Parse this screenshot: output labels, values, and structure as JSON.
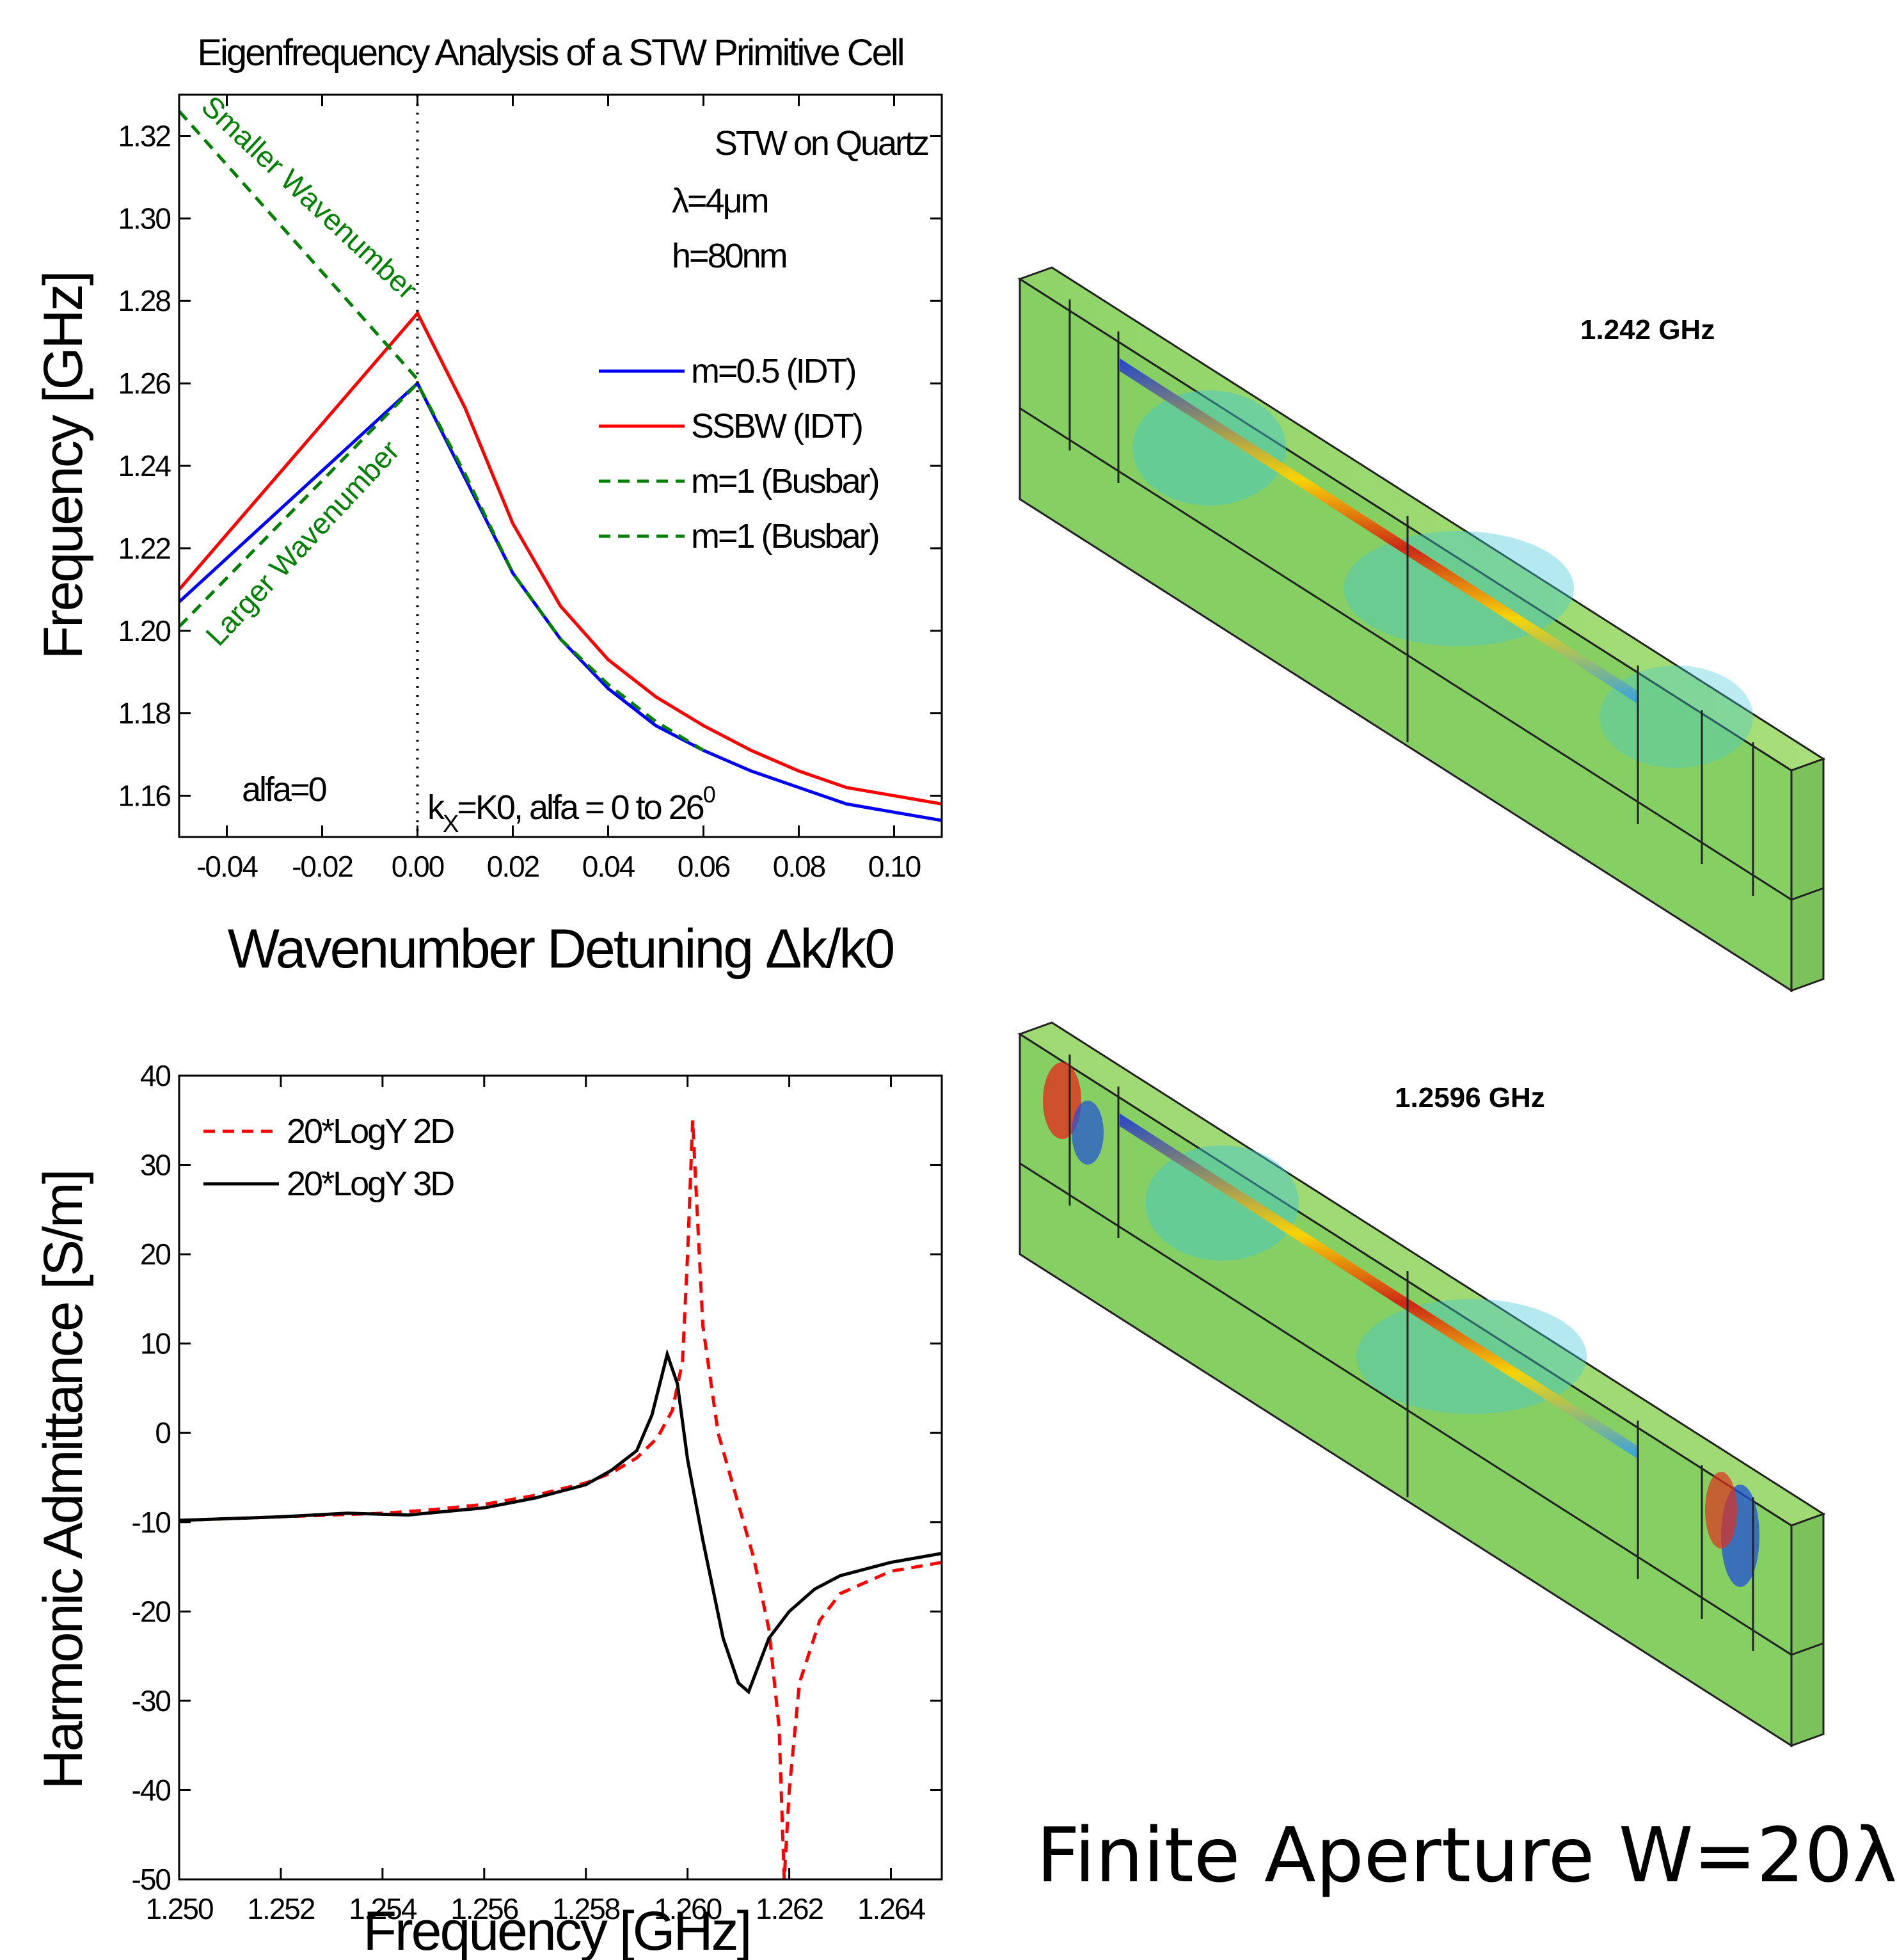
{
  "chart_data": [
    {
      "type": "line",
      "title": "Eigenfrequency Analysis of a STW Primitive Cell",
      "xlabel": "Wavenumber Detuning Δk/k0",
      "ylabel": "Frequency [GHz]",
      "xlim": [
        -0.05,
        0.11
      ],
      "ylim": [
        1.15,
        1.33
      ],
      "xticks": [
        "-0.04",
        "-0.02",
        "0.00",
        "0.02",
        "0.04",
        "0.06",
        "0.08",
        "0.10"
      ],
      "yticks": [
        "1.16",
        "1.18",
        "1.20",
        "1.22",
        "1.24",
        "1.26",
        "1.28",
        "1.30",
        "1.32"
      ],
      "legend_position": "center-right",
      "series": [
        {
          "name": "m=0.5 (IDT)",
          "color": "#0000ff",
          "dash": "solid",
          "x": [
            -0.05,
            0.0,
            0.01,
            0.02,
            0.03,
            0.04,
            0.05,
            0.06,
            0.07,
            0.08,
            0.09,
            0.11
          ],
          "y": [
            1.207,
            1.26,
            1.237,
            1.214,
            1.198,
            1.186,
            1.177,
            1.171,
            1.166,
            1.162,
            1.158,
            1.154
          ]
        },
        {
          "name": "SSBW (IDT)",
          "color": "#ff0000",
          "dash": "solid",
          "x": [
            -0.05,
            0.0,
            0.01,
            0.02,
            0.03,
            0.04,
            0.05,
            0.06,
            0.07,
            0.08,
            0.09,
            0.11
          ],
          "y": [
            1.21,
            1.277,
            1.254,
            1.226,
            1.206,
            1.193,
            1.184,
            1.177,
            1.171,
            1.166,
            1.162,
            1.158
          ]
        },
        {
          "name": "m=1 (Busbar)",
          "color": "#008000",
          "dash": "dashed",
          "x": [
            -0.05,
            0.0,
            0.01,
            0.02,
            0.03,
            0.04,
            0.05,
            0.06
          ],
          "y": [
            1.201,
            1.26,
            1.238,
            1.214,
            1.198,
            1.187,
            1.178,
            1.171
          ]
        },
        {
          "name": "m=1 (Busbar)",
          "color": "#008000",
          "dash": "dashed",
          "x": [
            -0.05,
            0.0
          ],
          "y": [
            1.326,
            1.261
          ]
        }
      ],
      "annotations": [
        "STW on Quartz",
        "λ=4μm",
        "h=80nm",
        "Smaller Wavenumber",
        "Larger Wavenumber",
        "alfa=0"
      ],
      "annotation_kx": {
        "k": "k",
        "sub": "X",
        "rest": "=K0, alfa = 0 to 26",
        "sup": "0"
      }
    },
    {
      "type": "line",
      "title": "",
      "xlabel": "Frequency [GHz]",
      "ylabel": "Harmonic Admittance [S/m]",
      "xlim": [
        1.25,
        1.265
      ],
      "ylim": [
        -50,
        40
      ],
      "xticks": [
        "1.250",
        "1.252",
        "1.254",
        "1.256",
        "1.258",
        "1.260",
        "1.262",
        "1.264"
      ],
      "yticks": [
        "-50",
        "-40",
        "-30",
        "-20",
        "-10",
        "0",
        "10",
        "20",
        "30",
        "40"
      ],
      "legend_position": "top-left",
      "series": [
        {
          "name": "20*LogY 2D",
          "color": "#ff0000",
          "dash": "dashed",
          "x": [
            1.25,
            1.252,
            1.254,
            1.255,
            1.256,
            1.257,
            1.258,
            1.2585,
            1.259,
            1.2594,
            1.2597,
            1.2599,
            1.26,
            1.2601,
            1.2603,
            1.2606,
            1.261,
            1.2613,
            1.2616,
            1.2618,
            1.2619,
            1.262,
            1.2622,
            1.2626,
            1.263,
            1.264,
            1.265
          ],
          "y": [
            -9.8,
            -9.4,
            -9.0,
            -8.6,
            -8.0,
            -7.0,
            -5.6,
            -4.5,
            -2.8,
            -0.6,
            2.5,
            8,
            20,
            35,
            12,
            0,
            -8,
            -14,
            -22,
            -33,
            -50,
            -40,
            -28,
            -21,
            -18,
            -15.5,
            -14.5
          ]
        },
        {
          "name": "20*LogY 3D",
          "color": "#000000",
          "dash": "solid",
          "x": [
            1.25,
            1.252,
            1.2533,
            1.2545,
            1.256,
            1.257,
            1.258,
            1.2585,
            1.259,
            1.2593,
            1.2596,
            1.2598,
            1.26,
            1.2603,
            1.2607,
            1.261,
            1.2612,
            1.2616,
            1.262,
            1.2625,
            1.263,
            1.264,
            1.265
          ],
          "y": [
            -9.8,
            -9.4,
            -9.0,
            -9.2,
            -8.4,
            -7.3,
            -5.8,
            -4.2,
            -2.0,
            2.0,
            8.8,
            5.5,
            -3,
            -12,
            -23,
            -28,
            -29,
            -23,
            -20,
            -17.5,
            -16,
            -14.5,
            -13.5
          ]
        }
      ]
    }
  ],
  "images": [
    {
      "label": "1.242 GHz",
      "icon": "field-map-3d-render"
    },
    {
      "label": "1.2596 GHz",
      "icon": "field-map-3d-render"
    }
  ],
  "caption": "Finite Aperture W=20λ"
}
